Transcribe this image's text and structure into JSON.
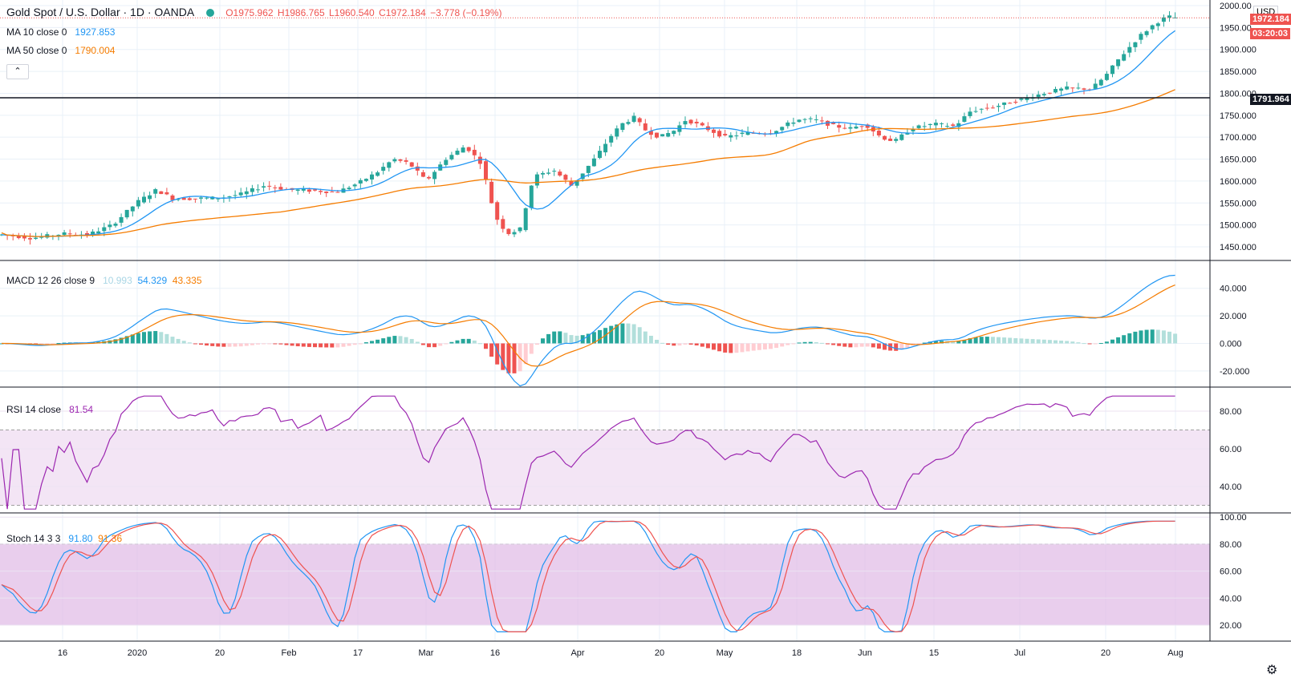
{
  "header": {
    "symbol": "Gold Spot / U.S. Dollar · 1D · OANDA",
    "O": "O1975.962",
    "H": "H1986.765",
    "L": "L1960.540",
    "C": "C1972.184",
    "change": "−3.778 (−0.19%)",
    "ma10_label": "MA 10 close 0",
    "ma10_value": "1927.853",
    "ma50_label": "MA 50 close 0",
    "ma50_value": "1790.004",
    "collapse_icon": "chevron-up-icon"
  },
  "price_axis": {
    "currency": "USD",
    "labels": [
      "2000.00",
      "1950.00",
      "1900.000",
      "1850.000",
      "1800.000",
      "1750.000",
      "1700.000",
      "1650.000",
      "1600.000",
      "1550.000",
      "1500.000",
      "1450.000"
    ],
    "last_price": "1972.184",
    "countdown": "03:20:03",
    "hline": "1791.964"
  },
  "macd": {
    "label": "MACD 12 26 close 9",
    "hist": "10.993",
    "macd": "54.329",
    "signal": "43.335",
    "axis": [
      "40.000",
      "20.000",
      "0.000",
      "-20.000"
    ]
  },
  "rsi": {
    "label": "RSI 14 close",
    "value": "81.54",
    "axis": [
      "80.00",
      "60.00",
      "40.00"
    ]
  },
  "stoch": {
    "label": "Stoch 14 3 3",
    "k": "91.80",
    "d": "91.36",
    "axis": [
      "100.00",
      "80.00",
      "60.00",
      "40.00",
      "20.00"
    ]
  },
  "time_axis": [
    "16",
    "2020",
    "20",
    "Feb",
    "17",
    "Mar",
    "16",
    "Apr",
    "20",
    "May",
    "18",
    "Jun",
    "15",
    "Jul",
    "20",
    "Aug"
  ],
  "colors": {
    "up": "#26a69a",
    "down": "#ef5350",
    "ma10": "#2196f3",
    "ma50": "#f57c00",
    "rsi": "#9c27b0",
    "stoch_k": "#2196f3",
    "stoch_d": "#ef5350",
    "band": "#e1bee7"
  },
  "chart_data": {
    "type": "candlestick",
    "title": "Gold Spot / U.S. Dollar · 1D · OANDA",
    "price_range": [
      1425,
      2010
    ],
    "key_points": [
      {
        "x": "16",
        "close": 1480
      },
      {
        "x": "2020",
        "close": 1550
      },
      {
        "x": "20",
        "close": 1560
      },
      {
        "x": "Feb",
        "close": 1580
      },
      {
        "x": "17",
        "close": 1600
      },
      {
        "x": "Mar",
        "close": 1640
      },
      {
        "x": "16",
        "close": 1480
      },
      {
        "x": "Apr",
        "close": 1620
      },
      {
        "x": "20",
        "close": 1700
      },
      {
        "x": "May",
        "close": 1700
      },
      {
        "x": "18",
        "close": 1740
      },
      {
        "x": "Jun",
        "close": 1730
      },
      {
        "x": "15",
        "close": 1730
      },
      {
        "x": "Jul",
        "close": 1785
      },
      {
        "x": "20",
        "close": 1810
      },
      {
        "x": "Aug",
        "close": 1972
      }
    ],
    "indicators": {
      "ma10_last": 1927.853,
      "ma50_last": 1790.004,
      "macd_hist_last": 10.993,
      "macd_last": 54.329,
      "macd_signal_last": 43.335,
      "rsi_last": 81.54,
      "stoch_k_last": 91.8,
      "stoch_d_last": 91.36
    }
  }
}
